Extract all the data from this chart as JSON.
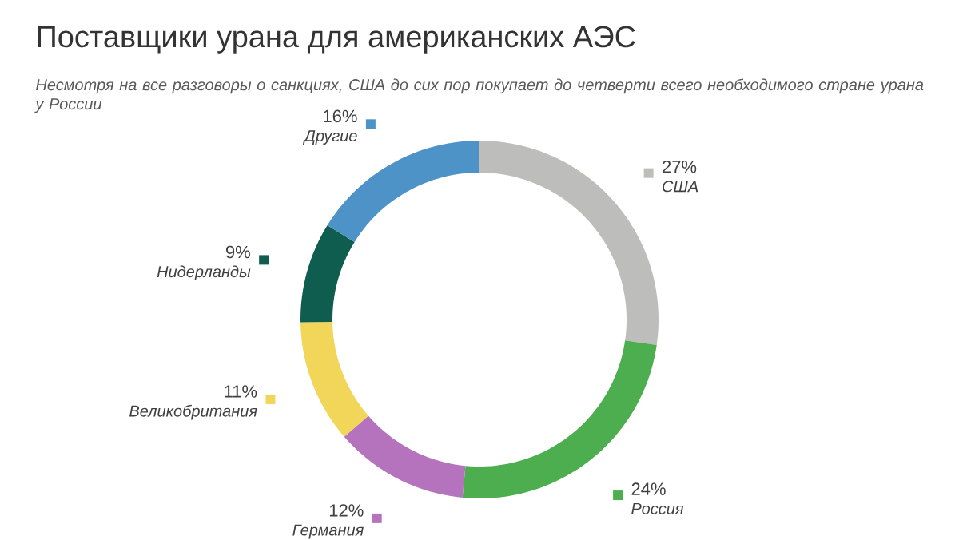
{
  "chart_data": {
    "type": "donut",
    "title": "Поставщики урана для американских АЭС",
    "subtitle": "Несмотря на все разговоры о санкциях, США до сих пор покупает до четверти всего необходимого стране урана у России",
    "categories": [
      "США",
      "Россия",
      "Германия",
      "Великобритания",
      "Нидерланды",
      "Другие"
    ],
    "values": [
      27,
      24,
      12,
      11,
      9,
      16
    ],
    "value_labels": [
      "27%",
      "24%",
      "12%",
      "11%",
      "9%",
      "16%"
    ],
    "legend": "bottom left",
    "colors": [
      "#bdbdbb",
      "#4cae4f",
      "#b673bd",
      "#f2d659",
      "#0e5d4f",
      "#4e93c7"
    ]
  }
}
